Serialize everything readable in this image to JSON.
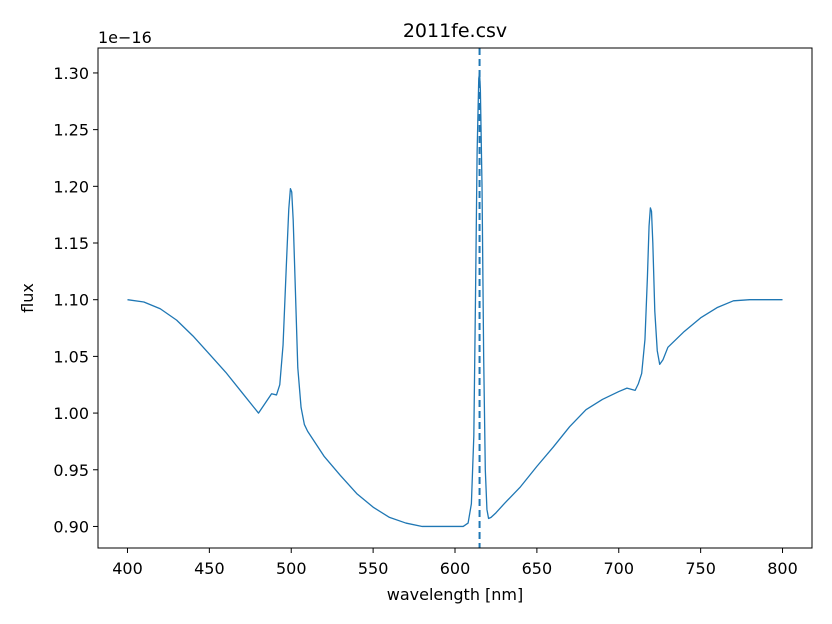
{
  "chart_data": {
    "type": "line",
    "title": "2011fe.csv",
    "xlabel": "wavelength [nm]",
    "ylabel": "flux",
    "y_offset_label": "1e−16",
    "xlim": [
      382,
      818
    ],
    "ylim": [
      0.881,
      1.322
    ],
    "x_ticks": [
      400,
      450,
      500,
      550,
      600,
      650,
      700,
      750,
      800
    ],
    "y_ticks": [
      0.9,
      0.95,
      1.0,
      1.05,
      1.1,
      1.15,
      1.2,
      1.25,
      1.3
    ],
    "y_tick_labels": [
      "0.90",
      "0.95",
      "1.00",
      "1.05",
      "1.10",
      "1.15",
      "1.20",
      "1.25",
      "1.30"
    ],
    "series_color": "#1f77b4",
    "series": [
      {
        "x": [
          400,
          410,
          420,
          430,
          440,
          450,
          460,
          470,
          480,
          488,
          491,
          493,
          495,
          497,
          498.5,
          499.5,
          500.3,
          501.2,
          502.5,
          504,
          506,
          508,
          510,
          520,
          530,
          540,
          550,
          560,
          570,
          580,
          590,
          600,
          605,
          608,
          610,
          611.5,
          612.5,
          613.5,
          614.5,
          615,
          615.5,
          616.5,
          617.5,
          618.5,
          619.5,
          620.5,
          622,
          625,
          630,
          640,
          650,
          660,
          670,
          680,
          690,
          700,
          705,
          710,
          712,
          714,
          716,
          717.5,
          718.5,
          719.3,
          720,
          720.8,
          722,
          723.5,
          725,
          727,
          730,
          740,
          750,
          760,
          770,
          780,
          790,
          795,
          800
        ],
        "y": [
          1.1,
          1.098,
          1.092,
          1.082,
          1.068,
          1.052,
          1.036,
          1.018,
          1.0,
          1.017,
          1.016,
          1.025,
          1.06,
          1.13,
          1.18,
          1.198,
          1.195,
          1.17,
          1.11,
          1.04,
          1.005,
          0.99,
          0.984,
          0.962,
          0.945,
          0.929,
          0.917,
          0.908,
          0.903,
          0.9,
          0.9,
          0.9,
          0.9,
          0.903,
          0.92,
          0.98,
          1.1,
          1.23,
          1.295,
          1.3,
          1.285,
          1.2,
          1.05,
          0.95,
          0.915,
          0.907,
          0.908,
          0.912,
          0.92,
          0.935,
          0.953,
          0.97,
          0.988,
          1.003,
          1.012,
          1.019,
          1.022,
          1.02,
          1.026,
          1.035,
          1.065,
          1.12,
          1.165,
          1.181,
          1.178,
          1.15,
          1.09,
          1.055,
          1.043,
          1.047,
          1.058,
          1.072,
          1.084,
          1.093,
          1.099,
          1.1,
          1.1,
          1.1,
          1.1
        ]
      }
    ],
    "vertical_line": {
      "x": 615,
      "style": "dashed"
    },
    "grid": false,
    "legend": "none"
  }
}
